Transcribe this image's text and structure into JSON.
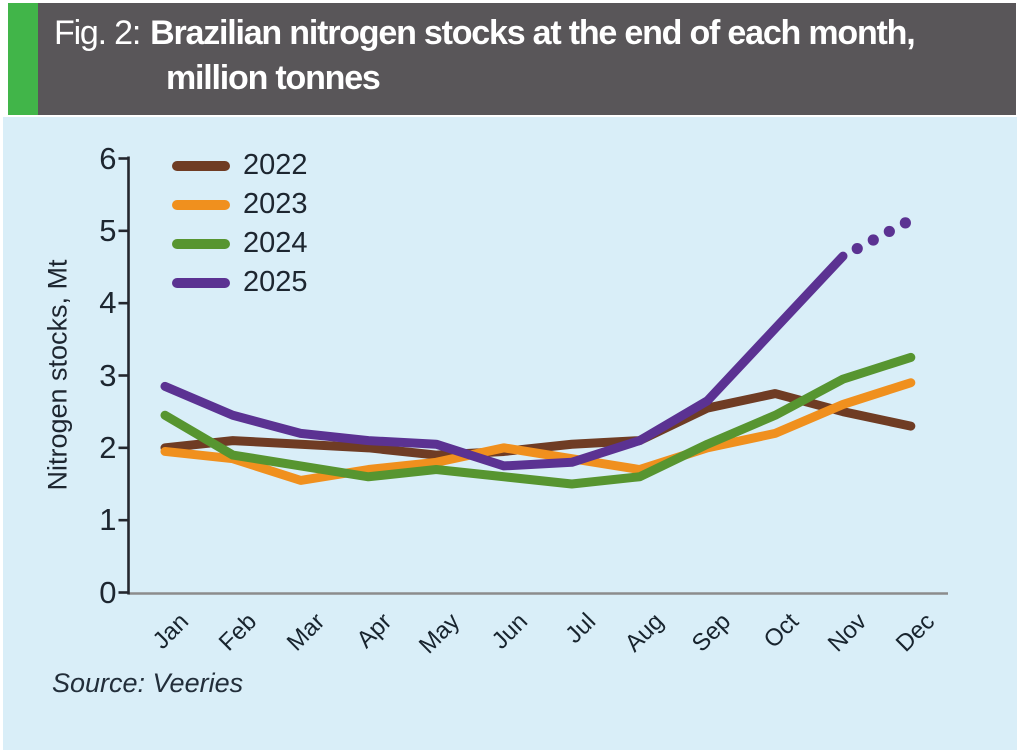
{
  "header": {
    "fig_label": "Fig. 2:",
    "title_line1": "Brazilian nitrogen stocks at the end of each month,",
    "title_line2": "million tonnes"
  },
  "colors": {
    "accent_green": "#41b549",
    "header_gray": "#595659",
    "panel_blue": "#d9eef8",
    "y_axis": "#23262e",
    "x_axis": "#8c8c8c",
    "text_dark": "#1d2630"
  },
  "chart_data": {
    "type": "line",
    "title": "Brazilian nitrogen stocks at the end of each month, million tonnes",
    "ylabel": "Nitrogen stocks, Mt",
    "xlabel": "",
    "ylim": [
      0,
      6
    ],
    "yticks": [
      0,
      1,
      2,
      3,
      4,
      5,
      6
    ],
    "grid": "off",
    "legend_position": "top-left",
    "categories": [
      "Jan",
      "Feb",
      "Mar",
      "Apr",
      "May",
      "Jun",
      "Jul",
      "Aug",
      "Sep",
      "Oct",
      "Nov",
      "Dec"
    ],
    "series": [
      {
        "name": "2022",
        "color": "#6f3c24",
        "values": [
          2.0,
          2.1,
          2.05,
          2.0,
          1.9,
          1.95,
          2.05,
          2.1,
          2.55,
          2.75,
          2.5,
          2.3
        ]
      },
      {
        "name": "2023",
        "color": "#f0901e",
        "values": [
          1.95,
          1.85,
          1.55,
          1.7,
          1.8,
          2.0,
          1.85,
          1.7,
          2.0,
          2.2,
          2.6,
          2.9
        ]
      },
      {
        "name": "2024",
        "color": "#579530",
        "values": [
          2.45,
          1.9,
          1.75,
          1.6,
          1.7,
          1.6,
          1.5,
          1.6,
          2.05,
          2.45,
          2.95,
          3.25
        ]
      },
      {
        "name": "2025",
        "color": "#5b3292",
        "values": [
          2.85,
          2.45,
          2.2,
          2.1,
          2.05,
          1.75,
          1.8,
          2.1,
          2.65,
          3.65,
          4.65,
          5.15
        ],
        "projection": {
          "dotted_from": "Nov",
          "dotted_to": "Dec",
          "dot_count": 4,
          "note": "Nov-to-Dec segment drawn as dots (forecast)"
        }
      }
    ],
    "source": "Source: Veeries"
  }
}
